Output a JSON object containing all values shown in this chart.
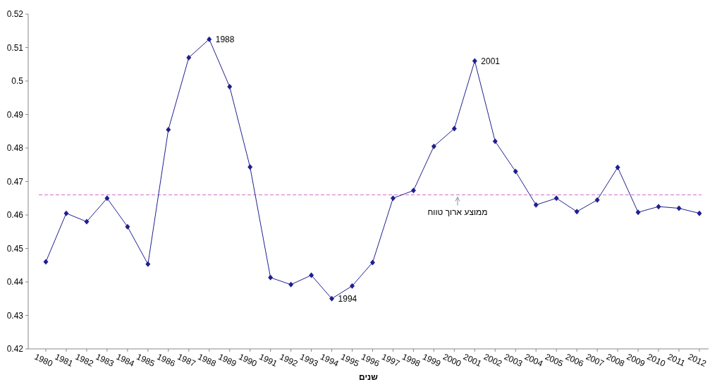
{
  "chart_data": {
    "type": "line",
    "xlabel": "שנים",
    "categories": [
      "1980",
      "1981",
      "1982",
      "1983",
      "1984",
      "1985",
      "1986",
      "1987",
      "1988",
      "1989",
      "1990",
      "1991",
      "1992",
      "1993",
      "1994",
      "1995",
      "1996",
      "1997",
      "1998",
      "1999",
      "2000",
      "2001",
      "2002",
      "2003",
      "2004",
      "2005",
      "2006",
      "2007",
      "2008",
      "2009",
      "2010",
      "2011",
      "2012"
    ],
    "series": [
      {
        "color": "#1f1f8f",
        "values": [
          0.446,
          0.4605,
          0.458,
          0.465,
          0.4565,
          0.4453,
          0.4855,
          0.507,
          0.5125,
          0.4983,
          0.4743,
          0.4413,
          0.4392,
          0.442,
          0.435,
          0.4388,
          0.4458,
          0.465,
          0.4673,
          0.4805,
          0.4858,
          0.506,
          0.482,
          0.473,
          0.463,
          0.465,
          0.461,
          0.4645,
          0.4742,
          0.4608,
          0.4625,
          0.462,
          0.4605
        ]
      }
    ],
    "ylim": [
      0.42,
      0.52
    ],
    "yticks": [
      0.42,
      0.43,
      0.44,
      0.45,
      0.46,
      0.47,
      0.48,
      0.49,
      0.5,
      0.51,
      0.52
    ],
    "marker": "diamond",
    "line_style": "solid",
    "grid": false,
    "ref_lines": [
      {
        "axis": "y",
        "value": 0.466,
        "label": "ממוצע ארוך טווח",
        "color": "#d070d0",
        "line_style": "dashed"
      }
    ],
    "annotations": [
      {
        "text": "1988",
        "x": "1988",
        "y": 0.5125
      },
      {
        "text": "2001",
        "x": "2001",
        "y": 0.506
      },
      {
        "text": "1994",
        "x": "1994",
        "y": 0.435
      }
    ]
  }
}
